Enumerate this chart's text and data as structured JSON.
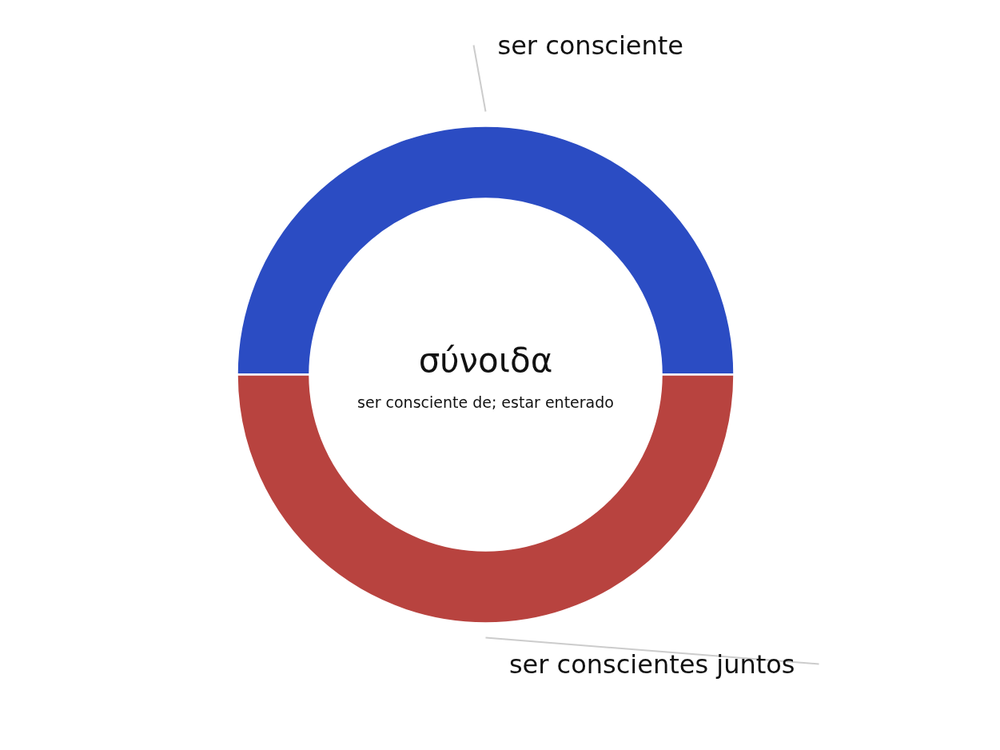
{
  "chart_data": {
    "type": "donut",
    "title": "σύνοιδα",
    "subtitle": "ser consciente de; estar enterado",
    "categories": [
      "ser consciente",
      "ser conscientes juntos"
    ],
    "values": [
      50,
      50
    ],
    "colors": [
      "#2b4cc3",
      "#b8433f"
    ]
  }
}
